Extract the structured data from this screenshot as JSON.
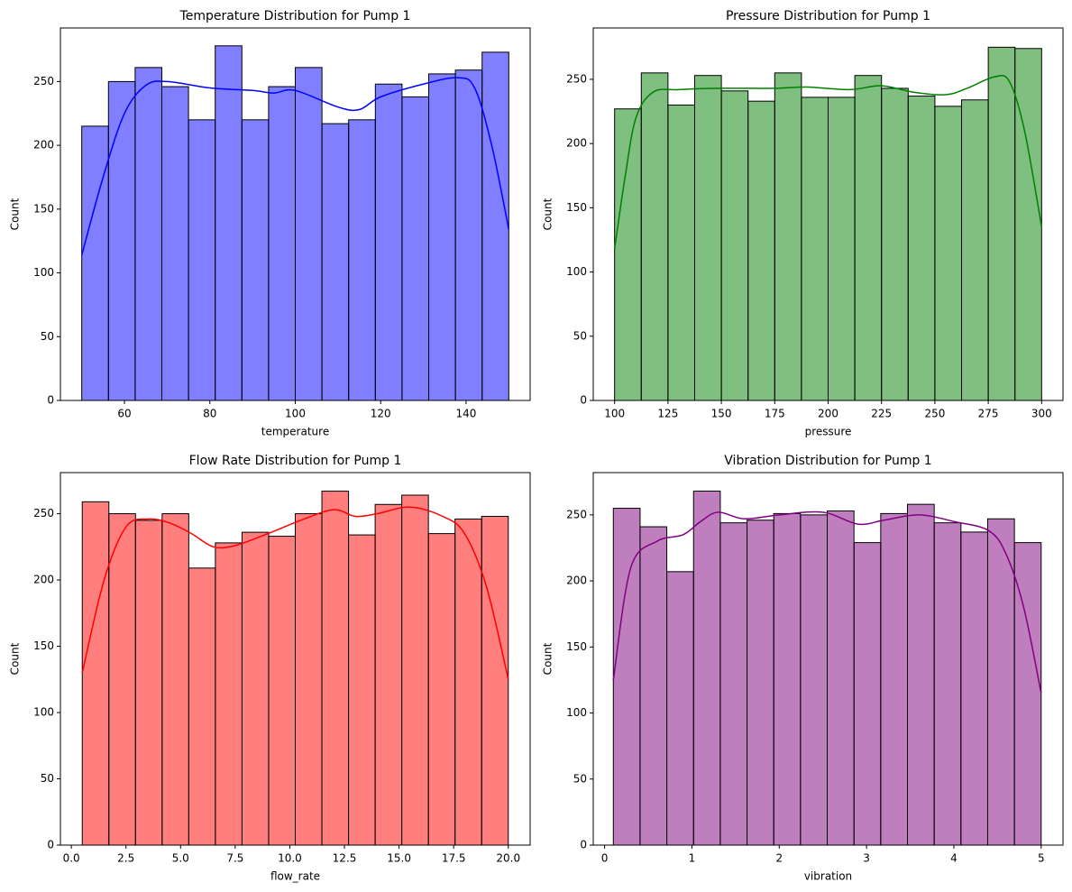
{
  "chart_data": [
    {
      "type": "histogram",
      "title": "Temperature Distribution for Pump 1",
      "xlabel": "temperature",
      "ylabel": "Count",
      "color": "blue",
      "bins": [
        50,
        56.25,
        62.5,
        68.75,
        75,
        81.25,
        87.5,
        93.75,
        100,
        106.25,
        112.5,
        118.75,
        125,
        131.25,
        137.5,
        143.75,
        150
      ],
      "values": [
        215,
        250,
        261,
        246,
        220,
        278,
        220,
        246,
        261,
        217,
        220,
        248,
        238,
        256,
        259,
        273
      ],
      "kde": {
        "x": [
          50,
          55,
          60,
          65,
          70,
          80,
          90,
          95,
          100,
          110,
          115,
          120,
          130,
          138,
          142,
          146,
          150
        ],
        "values": [
          114,
          175,
          225,
          247,
          250,
          245,
          243,
          241,
          243,
          230,
          228,
          238,
          248,
          253,
          245,
          200,
          134
        ]
      },
      "xlim": [
        45,
        155
      ],
      "ylim": [
        0,
        292
      ],
      "xticks": [
        60,
        80,
        100,
        120,
        140
      ],
      "yticks": [
        0,
        50,
        100,
        150,
        200,
        250
      ]
    },
    {
      "type": "histogram",
      "title": "Pressure Distribution for Pump 1",
      "xlabel": "pressure",
      "ylabel": "Count",
      "color": "green",
      "bins": [
        100,
        112.5,
        125,
        137.5,
        150,
        162.5,
        175,
        187.5,
        200,
        212.5,
        225,
        237.5,
        250,
        262.5,
        275,
        287.5,
        300
      ],
      "values": [
        227,
        255,
        230,
        253,
        241,
        233,
        255,
        236,
        236,
        253,
        243,
        237,
        229,
        234,
        275,
        274
      ],
      "kde": {
        "x": [
          100,
          105,
          110,
          118,
          130,
          150,
          175,
          190,
          210,
          225,
          240,
          255,
          265,
          278,
          285,
          292,
          300
        ],
        "values": [
          118,
          175,
          220,
          240,
          242,
          243,
          243,
          244,
          242,
          245,
          240,
          238,
          243,
          252,
          248,
          210,
          135
        ]
      },
      "xlim": [
        90,
        310
      ],
      "ylim": [
        0,
        290
      ],
      "xticks": [
        100,
        125,
        150,
        175,
        200,
        225,
        250,
        275,
        300
      ],
      "yticks": [
        0,
        50,
        100,
        150,
        200,
        250
      ]
    },
    {
      "type": "histogram",
      "title": "Flow Rate Distribution for Pump 1",
      "xlabel": "flow_rate",
      "ylabel": "Count",
      "color": "red",
      "bins": [
        0.5,
        1.71875,
        2.9375,
        4.15625,
        5.375,
        6.59375,
        7.8125,
        9.03125,
        10.25,
        11.46875,
        12.6875,
        13.90625,
        15.125,
        16.34375,
        17.5625,
        18.78125,
        20
      ],
      "values": [
        259,
        250,
        245,
        250,
        209,
        228,
        236,
        233,
        250,
        267,
        234,
        257,
        264,
        235,
        246,
        248
      ],
      "kde": {
        "x": [
          0.5,
          1.5,
          2.5,
          3.5,
          4.5,
          5.5,
          6.5,
          7.5,
          9,
          10.5,
          12,
          13,
          14,
          15.5,
          17,
          18,
          19,
          20
        ],
        "values": [
          130,
          200,
          240,
          246,
          243,
          235,
          225,
          226,
          235,
          245,
          253,
          248,
          250,
          255,
          248,
          235,
          195,
          125
        ]
      },
      "xlim": [
        -0.5,
        21
      ],
      "ylim": [
        0,
        281
      ],
      "xticks": [
        {
          "value": 0,
          "label": "0.0"
        },
        {
          "value": 2.5,
          "label": "2.5"
        },
        {
          "value": 5,
          "label": "5.0"
        },
        {
          "value": 7.5,
          "label": "7.5"
        },
        {
          "value": 10,
          "label": "10.0"
        },
        {
          "value": 12.5,
          "label": "12.5"
        },
        {
          "value": 15,
          "label": "15.0"
        },
        {
          "value": 17.5,
          "label": "17.5"
        },
        {
          "value": 20,
          "label": "20.0"
        }
      ],
      "yticks": [
        0,
        50,
        100,
        150,
        200,
        250
      ]
    },
    {
      "type": "histogram",
      "title": "Vibration Distribution for Pump 1",
      "xlabel": "vibration",
      "ylabel": "Count",
      "color": "purple",
      "bins": [
        0.1,
        0.40625,
        0.7125,
        1.01875,
        1.325,
        1.63125,
        1.9375,
        2.24375,
        2.55,
        2.85625,
        3.1625,
        3.46875,
        3.775,
        4.08125,
        4.3875,
        4.69375,
        5.0
      ],
      "values": [
        255,
        241,
        207,
        268,
        244,
        246,
        251,
        250,
        253,
        229,
        251,
        258,
        244,
        237,
        247,
        229
      ],
      "kde": {
        "x": [
          0.1,
          0.3,
          0.6,
          0.9,
          1.1,
          1.3,
          1.6,
          2,
          2.5,
          2.9,
          3.2,
          3.6,
          4,
          4.4,
          4.6,
          4.8,
          5
        ],
        "values": [
          125,
          210,
          230,
          235,
          245,
          252,
          247,
          250,
          252,
          243,
          246,
          250,
          245,
          238,
          220,
          180,
          115
        ]
      },
      "xlim": [
        -0.13,
        5.25
      ],
      "ylim": [
        0,
        282
      ],
      "xticks": [
        0,
        1,
        2,
        3,
        4,
        5
      ],
      "yticks": [
        0,
        50,
        100,
        150,
        200,
        250
      ]
    }
  ]
}
